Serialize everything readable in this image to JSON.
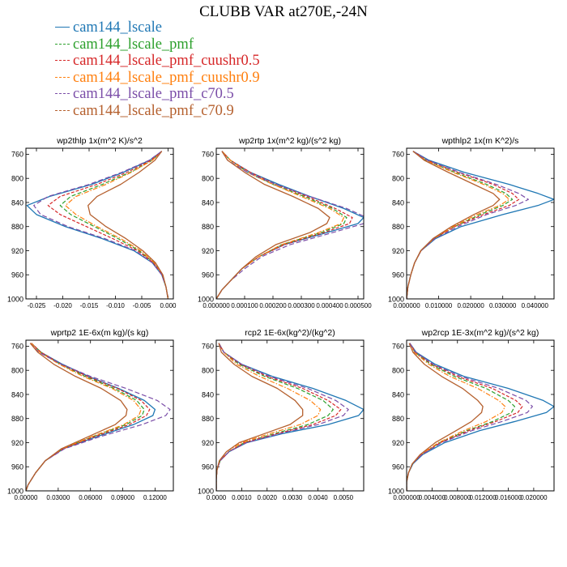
{
  "figure": {
    "title": "CLUBB VAR at270E,-24N"
  },
  "legend": [
    {
      "label": "cam144_lscale",
      "color": "#1f77b4"
    },
    {
      "label": "cam144_lscale_pmf",
      "color": "#2ca02c"
    },
    {
      "label": "cam144_lscale_pmf_cuushr0.5",
      "color": "#d62728"
    },
    {
      "label": "cam144_lscale_pmf_cuushr0.9",
      "color": "#ff7f0e"
    },
    {
      "label": "cam144_lscale_pmf_c70.5",
      "color": "#7b4ea8"
    },
    {
      "label": "cam144_lscale_pmf_c70.9",
      "color": "#b5602e"
    }
  ],
  "chart_data": [
    {
      "type": "line",
      "title": "wp2thlp   1x(m^2 K)/s^2",
      "xlim": [
        -0.027,
        0.001
      ],
      "ylim": [
        1000,
        750
      ],
      "xticks": [
        -0.025,
        -0.02,
        -0.015,
        -0.01,
        -0.005,
        0
      ],
      "xtick_labels": [
        "-0.025",
        "-0.020",
        "-0.015",
        "-0.010",
        "-0.005",
        "0.000"
      ],
      "yticks": [
        760,
        800,
        840,
        880,
        920,
        960,
        1000
      ],
      "y": [
        755,
        770,
        790,
        810,
        830,
        845,
        860,
        880,
        900,
        920,
        940,
        960,
        980,
        995,
        1000
      ],
      "series": [
        {
          "name": "cam144_lscale",
          "values": [
            -0.0012,
            -0.0035,
            -0.0085,
            -0.0145,
            -0.0225,
            -0.0268,
            -0.025,
            -0.0195,
            -0.0125,
            -0.0065,
            -0.003,
            -0.0012,
            -0.0004,
            -0.0001,
            0
          ]
        },
        {
          "name": "cam144_lscale_pmf",
          "values": [
            -0.0012,
            -0.003,
            -0.0072,
            -0.0125,
            -0.0185,
            -0.0205,
            -0.0185,
            -0.014,
            -0.0095,
            -0.0055,
            -0.0027,
            -0.0011,
            -0.0004,
            -0.0001,
            0
          ]
        },
        {
          "name": "cam144_lscale_pmf_cuushr0.5",
          "values": [
            -0.0012,
            -0.0032,
            -0.0078,
            -0.0135,
            -0.0205,
            -0.0228,
            -0.0205,
            -0.0155,
            -0.0105,
            -0.0058,
            -0.0028,
            -0.0011,
            -0.0004,
            -0.0001,
            0
          ]
        },
        {
          "name": "cam144_lscale_pmf_cuushr0.9",
          "values": [
            -0.0012,
            -0.003,
            -0.007,
            -0.0118,
            -0.0175,
            -0.0195,
            -0.0175,
            -0.0135,
            -0.009,
            -0.0052,
            -0.0026,
            -0.001,
            -0.0004,
            -0.0001,
            0
          ]
        },
        {
          "name": "cam144_lscale_pmf_c70.5",
          "values": [
            -0.0012,
            -0.0036,
            -0.0088,
            -0.015,
            -0.0228,
            -0.0255,
            -0.0242,
            -0.019,
            -0.012,
            -0.0062,
            -0.003,
            -0.0012,
            -0.0004,
            -0.0001,
            0
          ]
        },
        {
          "name": "cam144_lscale_pmf_c70.9",
          "values": [
            -0.0012,
            -0.0025,
            -0.0055,
            -0.009,
            -0.0135,
            -0.0152,
            -0.0148,
            -0.0118,
            -0.008,
            -0.0048,
            -0.0024,
            -0.001,
            -0.0004,
            -0.0001,
            0
          ]
        }
      ]
    },
    {
      "type": "line",
      "title": "wp2rtp   1x(m^2 kg)/(s^2 kg)",
      "xlim": [
        0,
        0.00052
      ],
      "ylim": [
        1000,
        750
      ],
      "xticks": [
        0,
        0.0001,
        0.0002,
        0.0003,
        0.0004,
        0.0005
      ],
      "xtick_labels": [
        "0.000000",
        "0.000100",
        "0.000200",
        "0.000300",
        "0.000400",
        "0.000500"
      ],
      "yticks": [
        760,
        800,
        840,
        880,
        920,
        960,
        1000
      ],
      "y": [
        755,
        770,
        790,
        810,
        830,
        850,
        865,
        875,
        890,
        910,
        930,
        950,
        970,
        985,
        1000
      ],
      "series": [
        {
          "name": "cam144_lscale",
          "values": [
            2e-05,
            5e-05,
            0.00012,
            0.00022,
            0.00033,
            0.00045,
            0.00052,
            0.0005,
            0.00039,
            0.00024,
            0.00015,
            9e-05,
            5e-05,
            2e-05,
            0
          ]
        },
        {
          "name": "cam144_lscale_pmf",
          "values": [
            2e-05,
            5e-05,
            0.00011,
            0.0002,
            0.00031,
            0.00041,
            0.00046,
            0.00045,
            0.00037,
            0.00023,
            0.00015,
            9e-05,
            5e-05,
            2e-05,
            0
          ]
        },
        {
          "name": "cam144_lscale_pmf_cuushr0.5",
          "values": [
            2e-05,
            5e-05,
            0.00012,
            0.00021,
            0.00032,
            0.00042,
            0.00048,
            0.00047,
            0.00038,
            0.00024,
            0.00015,
            9e-05,
            5e-05,
            2e-05,
            0
          ]
        },
        {
          "name": "cam144_lscale_pmf_cuushr0.9",
          "values": [
            2e-05,
            5e-05,
            0.00011,
            0.0002,
            0.0003,
            0.0004,
            0.00045,
            0.00044,
            0.00036,
            0.00023,
            0.00015,
            9e-05,
            5e-05,
            2e-05,
            0
          ]
        },
        {
          "name": "cam144_lscale_pmf_c70.5",
          "values": [
            2e-05,
            4e-05,
            0.00011,
            0.00021,
            0.00033,
            0.00046,
            0.00053,
            0.00052,
            0.00041,
            0.00026,
            0.00016,
            0.0001,
            5e-05,
            2e-05,
            0
          ]
        },
        {
          "name": "cam144_lscale_pmf_c70.9",
          "values": [
            2e-05,
            4e-05,
            0.0001,
            0.00017,
            0.00027,
            0.00036,
            0.0004,
            0.00039,
            0.00033,
            0.00021,
            0.00014,
            9e-05,
            5e-05,
            2e-05,
            0
          ]
        }
      ]
    },
    {
      "type": "line",
      "title": "wpthlp2   1x(m K^2)/s",
      "xlim": [
        0,
        0.046
      ],
      "ylim": [
        1000,
        750
      ],
      "xticks": [
        0,
        0.01,
        0.02,
        0.03,
        0.04
      ],
      "xtick_labels": [
        "0.000000",
        "0.010000",
        "0.020000",
        "0.030000",
        "0.040000"
      ],
      "yticks": [
        760,
        800,
        840,
        880,
        920,
        960,
        1000
      ],
      "y": [
        755,
        770,
        790,
        810,
        825,
        835,
        845,
        860,
        880,
        900,
        920,
        940,
        960,
        980,
        1000
      ],
      "series": [
        {
          "name": "cam144_lscale",
          "values": [
            0.002,
            0.007,
            0.018,
            0.032,
            0.041,
            0.046,
            0.041,
            0.03,
            0.017,
            0.009,
            0.0045,
            0.0025,
            0.0013,
            0.0004,
            0
          ]
        },
        {
          "name": "cam144_lscale_pmf",
          "values": [
            0.002,
            0.006,
            0.015,
            0.025,
            0.031,
            0.033,
            0.03,
            0.023,
            0.015,
            0.0085,
            0.0045,
            0.0025,
            0.0013,
            0.0004,
            0
          ]
        },
        {
          "name": "cam144_lscale_pmf_cuushr0.5",
          "values": [
            0.002,
            0.0065,
            0.016,
            0.027,
            0.033,
            0.035,
            0.032,
            0.024,
            0.015,
            0.0085,
            0.0045,
            0.0025,
            0.0013,
            0.0004,
            0
          ]
        },
        {
          "name": "cam144_lscale_pmf_cuushr0.9",
          "values": [
            0.002,
            0.006,
            0.0145,
            0.024,
            0.03,
            0.032,
            0.029,
            0.022,
            0.0145,
            0.0085,
            0.0045,
            0.0025,
            0.0013,
            0.0004,
            0
          ]
        },
        {
          "name": "cam144_lscale_pmf_c70.5",
          "values": [
            0.002,
            0.0065,
            0.0165,
            0.028,
            0.035,
            0.038,
            0.034,
            0.025,
            0.016,
            0.0088,
            0.0045,
            0.0025,
            0.0013,
            0.0004,
            0
          ]
        },
        {
          "name": "cam144_lscale_pmf_c70.9",
          "values": [
            0.002,
            0.0055,
            0.013,
            0.021,
            0.027,
            0.029,
            0.027,
            0.021,
            0.014,
            0.0082,
            0.0044,
            0.0025,
            0.0013,
            0.0004,
            0
          ]
        }
      ]
    },
    {
      "type": "line",
      "title": "wprtp2   1E-6x(m kg)/(s kg)",
      "xlim": [
        0,
        0.137
      ],
      "ylim": [
        1000,
        750
      ],
      "xticks": [
        0,
        0.03,
        0.06,
        0.09,
        0.12
      ],
      "xtick_labels": [
        "0.00000",
        "0.03000",
        "0.06000",
        "0.09000",
        "0.12000"
      ],
      "yticks": [
        760,
        800,
        840,
        880,
        920,
        960,
        1000
      ],
      "y": [
        755,
        770,
        790,
        810,
        830,
        850,
        865,
        875,
        890,
        910,
        930,
        950,
        970,
        990,
        1000
      ],
      "series": [
        {
          "name": "cam144_lscale",
          "values": [
            0.005,
            0.014,
            0.034,
            0.058,
            0.086,
            0.11,
            0.12,
            0.118,
            0.1,
            0.066,
            0.035,
            0.018,
            0.009,
            0.002,
            0
          ]
        },
        {
          "name": "cam144_lscale_pmf",
          "values": [
            0.005,
            0.014,
            0.032,
            0.055,
            0.082,
            0.103,
            0.11,
            0.108,
            0.093,
            0.062,
            0.034,
            0.018,
            0.009,
            0.002,
            0
          ]
        },
        {
          "name": "cam144_lscale_pmf_cuushr0.5",
          "values": [
            0.005,
            0.014,
            0.033,
            0.057,
            0.085,
            0.107,
            0.115,
            0.112,
            0.096,
            0.064,
            0.035,
            0.018,
            0.009,
            0.002,
            0
          ]
        },
        {
          "name": "cam144_lscale_pmf_cuushr0.9",
          "values": [
            0.005,
            0.013,
            0.031,
            0.053,
            0.08,
            0.1,
            0.107,
            0.105,
            0.091,
            0.061,
            0.034,
            0.018,
            0.009,
            0.002,
            0
          ]
        },
        {
          "name": "cam144_lscale_pmf_c70.5",
          "values": [
            0.004,
            0.012,
            0.033,
            0.06,
            0.093,
            0.122,
            0.134,
            0.13,
            0.108,
            0.069,
            0.036,
            0.018,
            0.009,
            0.002,
            0
          ]
        },
        {
          "name": "cam144_lscale_pmf_c70.9",
          "values": [
            0.004,
            0.011,
            0.026,
            0.046,
            0.07,
            0.088,
            0.094,
            0.093,
            0.083,
            0.058,
            0.033,
            0.018,
            0.009,
            0.002,
            0
          ]
        }
      ]
    },
    {
      "type": "line",
      "title": "rcp2   1E-6x(kg^2)/(kg^2)",
      "xlim": [
        0,
        0.0058
      ],
      "ylim": [
        1000,
        750
      ],
      "xticks": [
        0,
        0.001,
        0.002,
        0.003,
        0.004,
        0.005
      ],
      "xtick_labels": [
        "0.0000",
        "0.0010",
        "0.0020",
        "0.0030",
        "0.0040",
        "0.0050"
      ],
      "yticks": [
        760,
        800,
        840,
        880,
        920,
        960,
        1000
      ],
      "y": [
        755,
        770,
        790,
        810,
        830,
        850,
        865,
        875,
        890,
        905,
        920,
        935,
        950,
        965,
        980,
        1000
      ],
      "series": [
        {
          "name": "cam144_lscale",
          "values": [
            0.0001,
            0.0003,
            0.001,
            0.0022,
            0.0038,
            0.0051,
            0.0058,
            0.0056,
            0.0044,
            0.0026,
            0.0012,
            0.0005,
            0.00015,
            3e-05,
            0,
            0
          ]
        },
        {
          "name": "cam144_lscale_pmf",
          "values": [
            0.0001,
            0.0003,
            0.0009,
            0.0019,
            0.0032,
            0.0042,
            0.0046,
            0.0044,
            0.0036,
            0.0023,
            0.0011,
            0.0005,
            0.00015,
            3e-05,
            0,
            0
          ]
        },
        {
          "name": "cam144_lscale_pmf_cuushr0.5",
          "values": [
            0.0001,
            0.0003,
            0.00095,
            0.002,
            0.0034,
            0.0044,
            0.0049,
            0.0047,
            0.0038,
            0.0024,
            0.0011,
            0.0005,
            0.00015,
            3e-05,
            0,
            0
          ]
        },
        {
          "name": "cam144_lscale_pmf_cuushr0.9",
          "values": [
            0.0001,
            0.0003,
            0.0008,
            0.0017,
            0.0028,
            0.0037,
            0.0041,
            0.004,
            0.0033,
            0.0021,
            0.001,
            0.0004,
            0.00013,
            3e-05,
            0,
            0
          ]
        },
        {
          "name": "cam144_lscale_pmf_c70.5",
          "values": [
            0.0001,
            0.0003,
            0.001,
            0.0021,
            0.0036,
            0.0047,
            0.0052,
            0.005,
            0.004,
            0.0025,
            0.0012,
            0.0005,
            0.00015,
            3e-05,
            0,
            0
          ]
        },
        {
          "name": "cam144_lscale_pmf_c70.9",
          "values": [
            0.0001,
            0.0002,
            0.0007,
            0.0014,
            0.0024,
            0.0031,
            0.0034,
            0.0034,
            0.0029,
            0.0019,
            0.0009,
            0.0004,
            0.00012,
            3e-05,
            0,
            0
          ]
        }
      ]
    },
    {
      "type": "line",
      "title": "wp2rcp   1E-3x(m^2 kg)/(s^2 kg)",
      "xlim": [
        0,
        0.0232
      ],
      "ylim": [
        1000,
        750
      ],
      "xticks": [
        0,
        0.004,
        0.008,
        0.012,
        0.016,
        0.02
      ],
      "xtick_labels": [
        "0.000000",
        "0.004000",
        "0.008000",
        "0.012000",
        "0.016000",
        "0.020000"
      ],
      "yticks": [
        760,
        800,
        840,
        880,
        920,
        960,
        1000
      ],
      "y": [
        755,
        770,
        790,
        810,
        830,
        850,
        860,
        870,
        885,
        900,
        920,
        940,
        955,
        970,
        985,
        1000
      ],
      "series": [
        {
          "name": "cam144_lscale",
          "values": [
            0.0005,
            0.0015,
            0.0045,
            0.009,
            0.016,
            0.0215,
            0.0232,
            0.022,
            0.017,
            0.0115,
            0.006,
            0.0025,
            0.001,
            0.0003,
            0,
            0
          ]
        },
        {
          "name": "cam144_lscale_pmf",
          "values": [
            0.0005,
            0.0013,
            0.0038,
            0.0075,
            0.0125,
            0.016,
            0.017,
            0.0165,
            0.0135,
            0.0095,
            0.0052,
            0.0023,
            0.0009,
            0.0003,
            0,
            0
          ]
        },
        {
          "name": "cam144_lscale_pmf_cuushr0.5",
          "values": [
            0.0005,
            0.0014,
            0.004,
            0.008,
            0.0135,
            0.0172,
            0.0182,
            0.0175,
            0.014,
            0.0098,
            0.0053,
            0.0023,
            0.0009,
            0.0003,
            0,
            0
          ]
        },
        {
          "name": "cam144_lscale_pmf_cuushr0.9",
          "values": [
            0.0005,
            0.0012,
            0.0035,
            0.0068,
            0.0112,
            0.0145,
            0.0155,
            0.015,
            0.0125,
            0.009,
            0.005,
            0.0022,
            0.0009,
            0.0003,
            0,
            0
          ]
        },
        {
          "name": "cam144_lscale_pmf_c70.5",
          "values": [
            0.0005,
            0.0014,
            0.0042,
            0.0085,
            0.0145,
            0.0188,
            0.0198,
            0.019,
            0.015,
            0.0103,
            0.0055,
            0.0024,
            0.0009,
            0.0003,
            0,
            0
          ]
        },
        {
          "name": "cam144_lscale_pmf_c70.9",
          "values": [
            0.0004,
            0.001,
            0.0028,
            0.0055,
            0.0088,
            0.0112,
            0.012,
            0.0118,
            0.0102,
            0.0078,
            0.0045,
            0.0021,
            0.0009,
            0.0003,
            0,
            0
          ]
        }
      ]
    }
  ]
}
